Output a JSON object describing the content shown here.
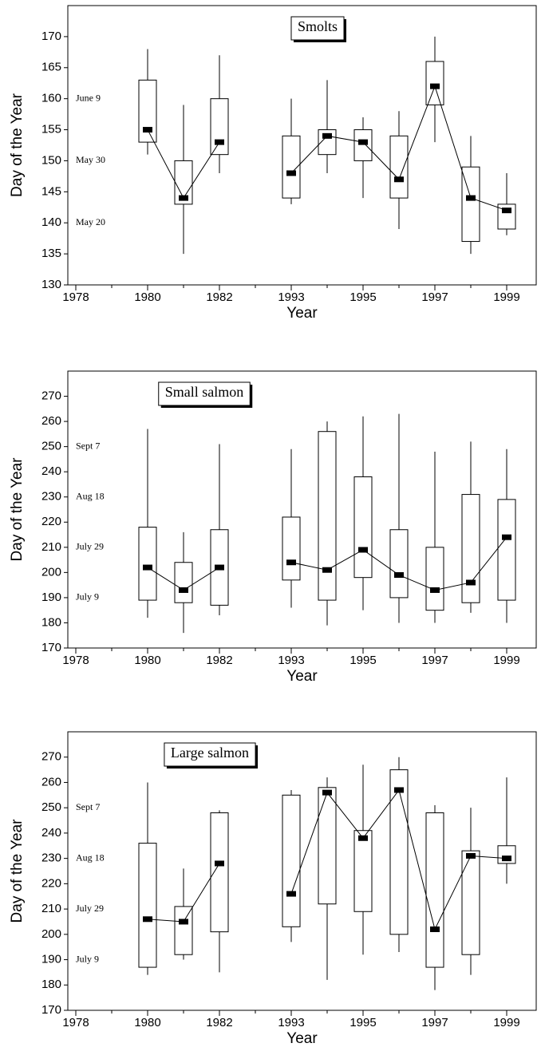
{
  "chart_data": [
    {
      "type": "box",
      "title": "Smolts",
      "xlabel": "Year",
      "ylabel": "Day of the Year",
      "categories": [
        "1978",
        null,
        "1980",
        null,
        "1982",
        null,
        "1993",
        null,
        "1995",
        null,
        "1997",
        null,
        "1999"
      ],
      "whisker_low": [
        null,
        null,
        151,
        135,
        148,
        null,
        143,
        148,
        144,
        139,
        153,
        135,
        138
      ],
      "q1": [
        null,
        null,
        153,
        143,
        151,
        null,
        144,
        151,
        150,
        144,
        159,
        137,
        139
      ],
      "median": [
        null,
        null,
        155,
        144,
        153,
        null,
        148,
        154,
        153,
        147,
        162,
        144,
        142
      ],
      "q3": [
        null,
        null,
        163,
        150,
        160,
        null,
        154,
        155,
        155,
        154,
        166,
        149,
        143
      ],
      "whisker_high": [
        null,
        null,
        168,
        159,
        167,
        null,
        160,
        163,
        157,
        158,
        170,
        154,
        148
      ],
      "ylim": [
        130,
        175
      ],
      "yticks": [
        130,
        135,
        140,
        145,
        150,
        155,
        160,
        165,
        170
      ],
      "date_ticks": [
        {
          "value": 160,
          "label": "June 9"
        },
        {
          "value": 150,
          "label": "May 30"
        },
        {
          "value": 140,
          "label": "May 20"
        }
      ]
    },
    {
      "type": "box",
      "title": "Small salmon",
      "xlabel": "Year",
      "ylabel": "Day of the Year",
      "categories": [
        "1978",
        null,
        "1980",
        null,
        "1982",
        null,
        "1993",
        null,
        "1995",
        null,
        "1997",
        null,
        "1999"
      ],
      "whisker_low": [
        null,
        null,
        182,
        176,
        183,
        null,
        186,
        179,
        185,
        180,
        180,
        184,
        180
      ],
      "q1": [
        null,
        null,
        189,
        188,
        187,
        null,
        197,
        189,
        198,
        190,
        185,
        188,
        189
      ],
      "median": [
        null,
        null,
        202,
        193,
        202,
        null,
        204,
        201,
        209,
        199,
        193,
        196,
        214
      ],
      "q3": [
        null,
        null,
        218,
        204,
        217,
        null,
        222,
        256,
        238,
        217,
        210,
        231,
        229
      ],
      "whisker_high": [
        null,
        null,
        257,
        216,
        251,
        null,
        249,
        260,
        262,
        263,
        248,
        252,
        249
      ],
      "ylim": [
        170,
        280
      ],
      "yticks": [
        170,
        180,
        190,
        200,
        210,
        220,
        230,
        240,
        250,
        260,
        270
      ],
      "date_ticks": [
        {
          "value": 250,
          "label": "Sept 7"
        },
        {
          "value": 230,
          "label": "Aug 18"
        },
        {
          "value": 210,
          "label": "July 29"
        },
        {
          "value": 190,
          "label": "July 9"
        }
      ]
    },
    {
      "type": "box",
      "title": "Large salmon",
      "xlabel": "Year",
      "ylabel": "Day of the Year",
      "categories": [
        "1978",
        null,
        "1980",
        null,
        "1982",
        null,
        "1993",
        null,
        "1995",
        null,
        "1997",
        null,
        "1999"
      ],
      "whisker_low": [
        null,
        null,
        184,
        190,
        185,
        null,
        197,
        182,
        192,
        193,
        178,
        184,
        220
      ],
      "q1": [
        null,
        null,
        187,
        192,
        201,
        null,
        203,
        212,
        209,
        200,
        187,
        192,
        228
      ],
      "median": [
        null,
        null,
        206,
        205,
        228,
        null,
        216,
        256,
        238,
        257,
        202,
        231,
        230
      ],
      "q3": [
        null,
        null,
        236,
        211,
        248,
        null,
        255,
        258,
        241,
        265,
        248,
        233,
        235
      ],
      "whisker_high": [
        null,
        null,
        260,
        226,
        249,
        null,
        257,
        262,
        267,
        270,
        251,
        250,
        262
      ],
      "ylim": [
        170,
        280
      ],
      "yticks": [
        170,
        180,
        190,
        200,
        210,
        220,
        230,
        240,
        250,
        260,
        270
      ],
      "date_ticks": [
        {
          "value": 250,
          "label": "Sept 7"
        },
        {
          "value": 230,
          "label": "Aug 18"
        },
        {
          "value": 210,
          "label": "July 29"
        },
        {
          "value": 190,
          "label": "July 9"
        }
      ]
    }
  ]
}
